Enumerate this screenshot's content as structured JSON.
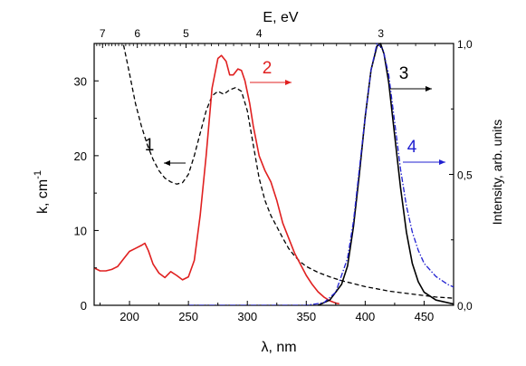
{
  "chart_data": {
    "type": "line",
    "title": "",
    "xlabel": "λ, nm",
    "ylabel": "k, cm",
    "ylabel_sup": "-1",
    "y2label": "Intensity, arb. units",
    "x2label": "E, eV",
    "xlim": [
      170,
      475
    ],
    "ylim": [
      0,
      35
    ],
    "y2lim": [
      0,
      1.0
    ],
    "x_ticks": [
      200,
      250,
      300,
      350,
      400,
      450
    ],
    "y_ticks": [
      0,
      10,
      20,
      30
    ],
    "y2_ticks": [
      {
        "value": 0.0,
        "label": "0,0"
      },
      {
        "value": 0.5,
        "label": "0,5"
      },
      {
        "value": 1.0,
        "label": "1,0"
      }
    ],
    "top_ticks": [
      {
        "eV": 7,
        "label": "7"
      },
      {
        "eV": 6,
        "label": "6"
      },
      {
        "eV": 5,
        "label": "5"
      },
      {
        "eV": 4,
        "label": "4"
      },
      {
        "eV": 3,
        "label": "3"
      }
    ],
    "grid": false,
    "series": [
      {
        "name": "1",
        "axis": "left",
        "color": "#000000",
        "dash": "dashed",
        "points": [
          [
            195,
            34.8
          ],
          [
            200,
            31
          ],
          [
            205,
            27
          ],
          [
            210,
            24
          ],
          [
            215,
            21.5
          ],
          [
            220,
            19.5
          ],
          [
            225,
            18
          ],
          [
            230,
            17
          ],
          [
            235,
            16.5
          ],
          [
            240,
            16.2
          ],
          [
            245,
            16.4
          ],
          [
            250,
            17.5
          ],
          [
            255,
            20
          ],
          [
            260,
            23
          ],
          [
            265,
            26
          ],
          [
            270,
            28
          ],
          [
            275,
            28.6
          ],
          [
            280,
            28.2
          ],
          [
            285,
            28.8
          ],
          [
            290,
            29.1
          ],
          [
            295,
            28.6
          ],
          [
            300,
            26
          ],
          [
            305,
            21.5
          ],
          [
            310,
            17
          ],
          [
            315,
            14
          ],
          [
            320,
            12
          ],
          [
            325,
            10.5
          ],
          [
            330,
            9
          ],
          [
            335,
            7.6
          ],
          [
            340,
            6.6
          ],
          [
            345,
            5.8
          ],
          [
            350,
            5.2
          ],
          [
            360,
            4.4
          ],
          [
            370,
            3.8
          ],
          [
            380,
            3.3
          ],
          [
            390,
            2.9
          ],
          [
            400,
            2.5
          ],
          [
            410,
            2.2
          ],
          [
            420,
            1.9
          ],
          [
            430,
            1.7
          ],
          [
            440,
            1.5
          ],
          [
            450,
            1.3
          ],
          [
            460,
            1.1
          ],
          [
            470,
            1.0
          ],
          [
            475,
            0.95
          ]
        ]
      },
      {
        "name": "2",
        "axis": "left",
        "color": "#e02020",
        "dash": "solid",
        "points": [
          [
            170,
            5.0
          ],
          [
            175,
            4.6
          ],
          [
            180,
            4.6
          ],
          [
            185,
            4.8
          ],
          [
            190,
            5.2
          ],
          [
            195,
            6.2
          ],
          [
            200,
            7.2
          ],
          [
            205,
            7.6
          ],
          [
            210,
            8.0
          ],
          [
            213,
            8.3
          ],
          [
            216,
            7.3
          ],
          [
            220,
            5.5
          ],
          [
            225,
            4.3
          ],
          [
            230,
            3.7
          ],
          [
            235,
            4.5
          ],
          [
            240,
            4.0
          ],
          [
            245,
            3.4
          ],
          [
            250,
            3.8
          ],
          [
            255,
            6.0
          ],
          [
            260,
            12
          ],
          [
            265,
            20
          ],
          [
            270,
            29
          ],
          [
            275,
            33
          ],
          [
            278,
            33.4
          ],
          [
            282,
            32.6
          ],
          [
            285,
            30.8
          ],
          [
            288,
            30.8
          ],
          [
            292,
            31.6
          ],
          [
            295,
            31.4
          ],
          [
            298,
            30
          ],
          [
            302,
            27
          ],
          [
            305,
            24
          ],
          [
            310,
            20
          ],
          [
            315,
            18
          ],
          [
            320,
            16.5
          ],
          [
            325,
            14
          ],
          [
            330,
            11
          ],
          [
            335,
            9
          ],
          [
            340,
            7
          ],
          [
            345,
            5.5
          ],
          [
            350,
            4
          ],
          [
            355,
            2.8
          ],
          [
            360,
            1.8
          ],
          [
            365,
            1.1
          ],
          [
            370,
            0.6
          ],
          [
            375,
            0.3
          ],
          [
            378,
            0.2
          ]
        ]
      },
      {
        "name": "3",
        "axis": "right",
        "color": "#000000",
        "dash": "solid",
        "points": [
          [
            360,
            0.0
          ],
          [
            370,
            0.02
          ],
          [
            380,
            0.08
          ],
          [
            385,
            0.15
          ],
          [
            390,
            0.3
          ],
          [
            395,
            0.5
          ],
          [
            400,
            0.72
          ],
          [
            405,
            0.9
          ],
          [
            410,
            0.99
          ],
          [
            413,
            1.0
          ],
          [
            416,
            0.96
          ],
          [
            420,
            0.85
          ],
          [
            425,
            0.65
          ],
          [
            430,
            0.45
          ],
          [
            435,
            0.28
          ],
          [
            440,
            0.16
          ],
          [
            445,
            0.09
          ],
          [
            450,
            0.05
          ],
          [
            460,
            0.02
          ],
          [
            475,
            0.005
          ]
        ]
      },
      {
        "name": "4",
        "axis": "right",
        "color": "#2020d0",
        "dash": "dashdot",
        "points": [
          [
            250,
            0.0
          ],
          [
            300,
            0.0
          ],
          [
            350,
            0.0
          ],
          [
            365,
            0.01
          ],
          [
            375,
            0.05
          ],
          [
            385,
            0.18
          ],
          [
            390,
            0.32
          ],
          [
            395,
            0.52
          ],
          [
            400,
            0.72
          ],
          [
            405,
            0.9
          ],
          [
            410,
            1.0
          ],
          [
            415,
            0.98
          ],
          [
            420,
            0.88
          ],
          [
            425,
            0.7
          ],
          [
            430,
            0.52
          ],
          [
            435,
            0.38
          ],
          [
            440,
            0.28
          ],
          [
            445,
            0.21
          ],
          [
            450,
            0.16
          ],
          [
            460,
            0.11
          ],
          [
            470,
            0.08
          ],
          [
            475,
            0.07
          ]
        ]
      }
    ],
    "annotations": [
      {
        "id": "label-1",
        "text": "1",
        "color": "#000000",
        "arrow": "left"
      },
      {
        "id": "label-2",
        "text": "2",
        "color": "#e02020",
        "arrow": "right"
      },
      {
        "id": "label-3",
        "text": "3",
        "color": "#000000",
        "arrow": "right"
      },
      {
        "id": "label-4",
        "text": "4",
        "color": "#2020d0",
        "arrow": "right"
      }
    ]
  }
}
